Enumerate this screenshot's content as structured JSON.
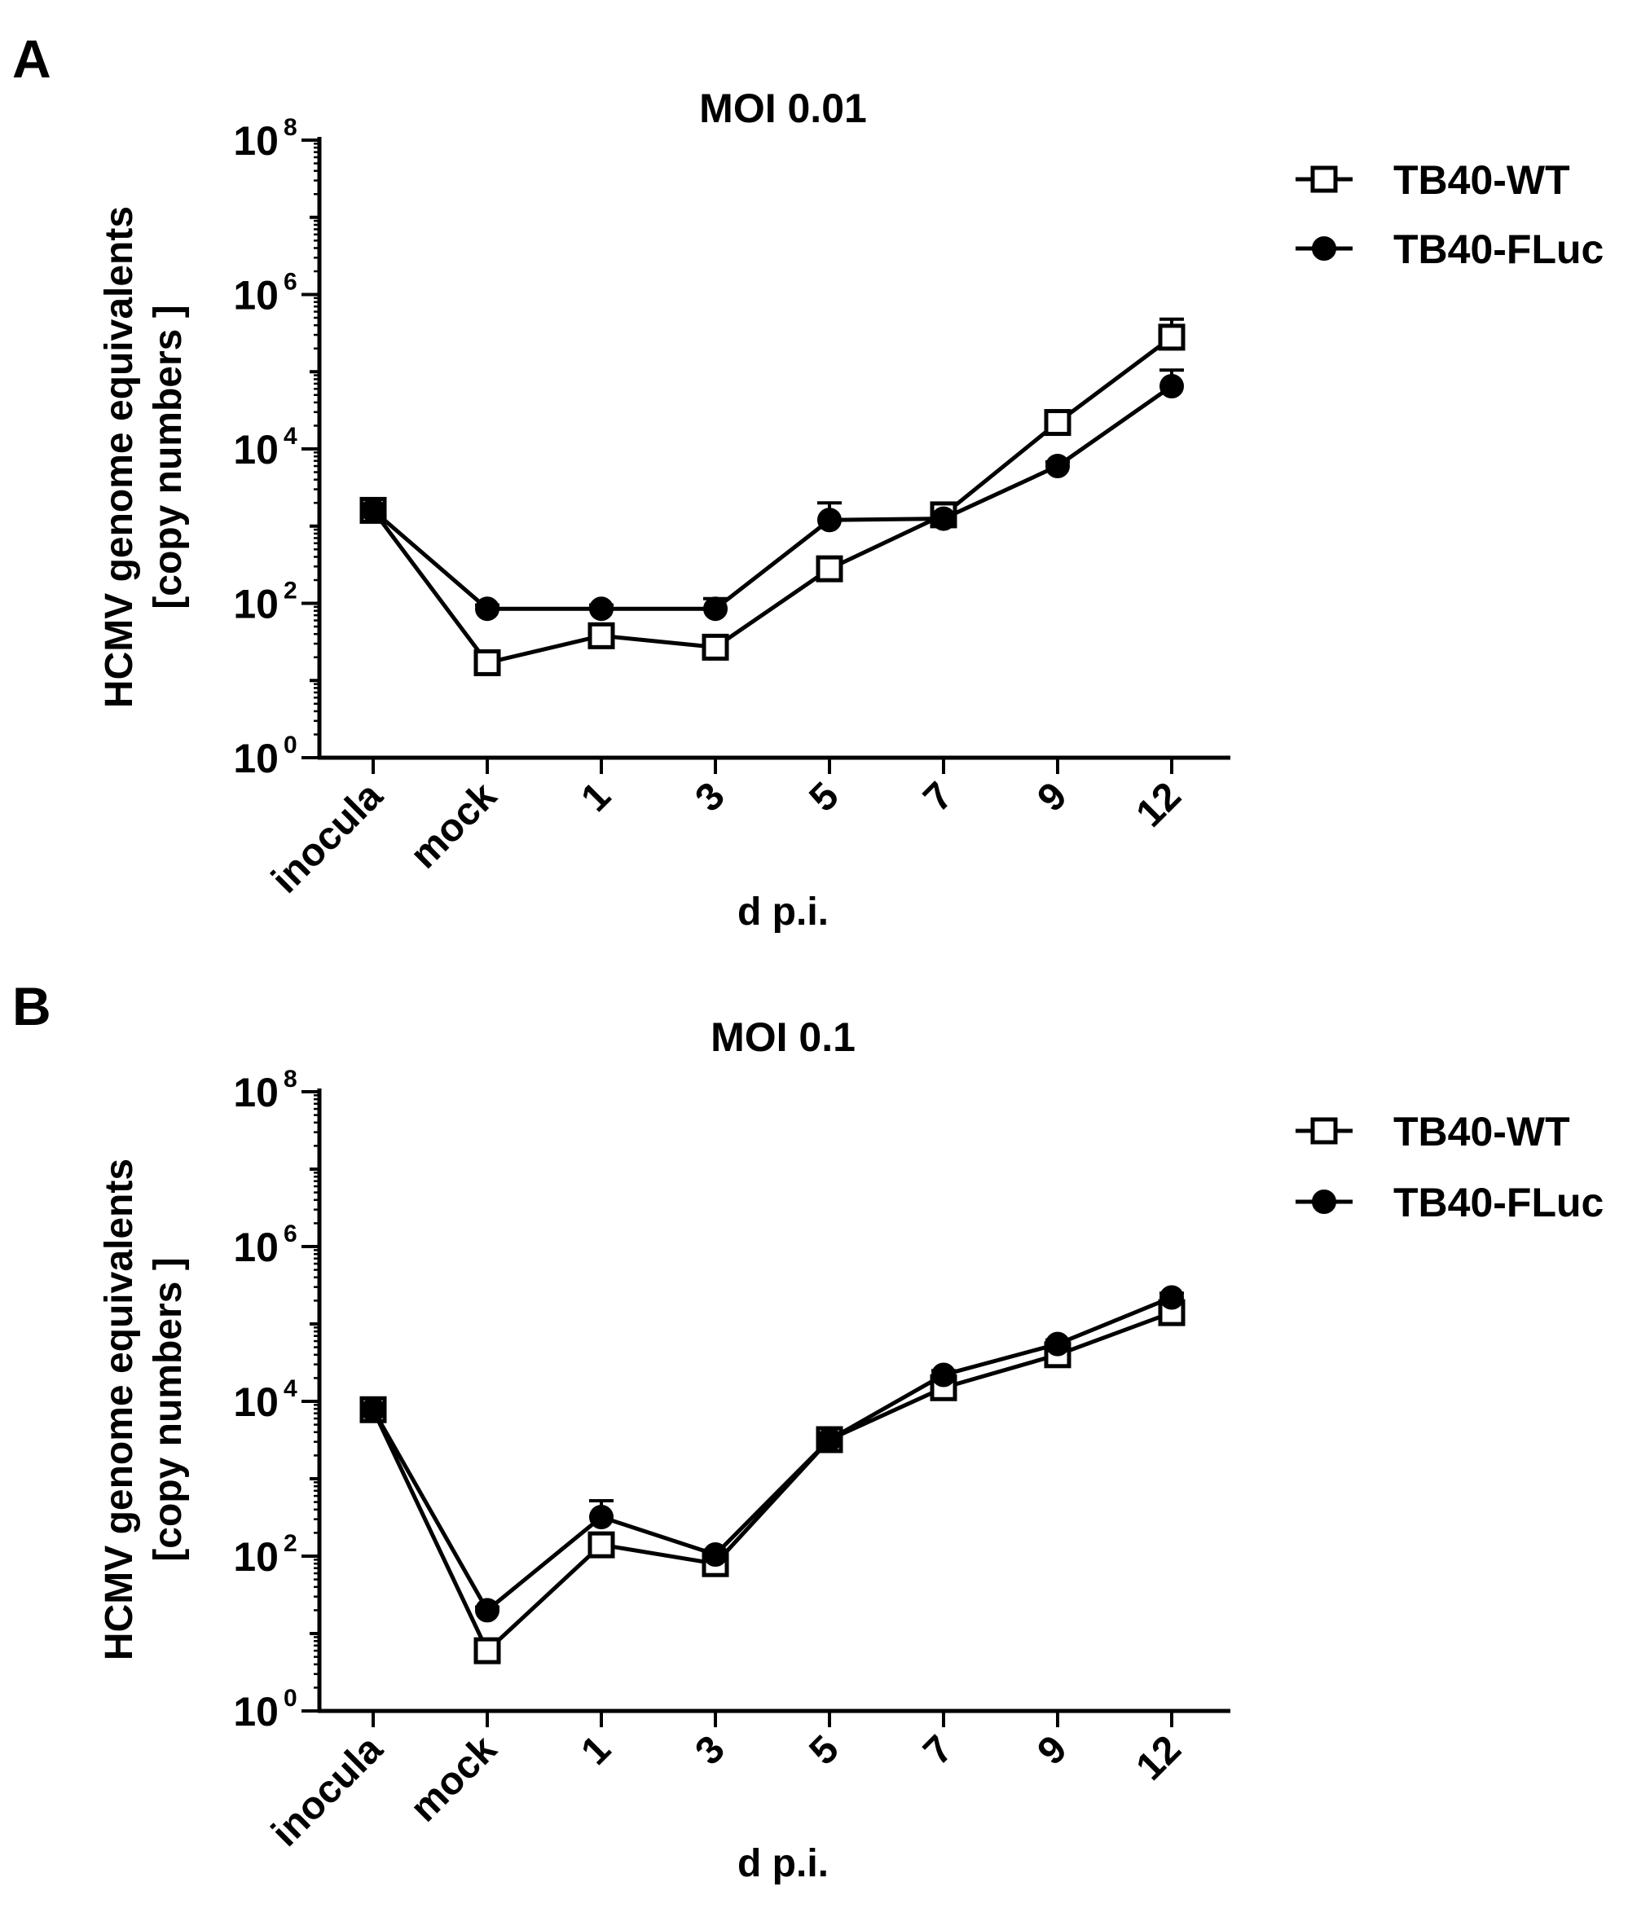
{
  "chart_data": [
    {
      "type": "line",
      "panel": "A",
      "title": "MOI 0.01",
      "xlabel": "d p.i.",
      "ylabel": [
        "HCMV genome equivalents",
        "[copy numbers ]"
      ],
      "yscale": "log10",
      "ylim": [
        1,
        100000000
      ],
      "yticks": [
        {
          "base": "10",
          "exp": "0"
        },
        {
          "base": "10",
          "exp": "2"
        },
        {
          "base": "10",
          "exp": "4"
        },
        {
          "base": "10",
          "exp": "6"
        },
        {
          "base": "10",
          "exp": "8"
        }
      ],
      "categories": [
        "inocula",
        "mock",
        "1",
        "3",
        "5",
        "7",
        "9",
        "12"
      ],
      "legend_position": "top-right",
      "series": [
        {
          "name": "TB40-WT",
          "marker": "open-square",
          "values": [
            1600,
            17,
            38,
            27,
            280,
            1400,
            22000,
            280000
          ],
          "err_upper": [
            1900,
            19,
            44,
            31,
            320,
            1600,
            27000,
            480000
          ]
        },
        {
          "name": "TB40-FLuc",
          "marker": "filled-circle",
          "values": [
            1600,
            85,
            85,
            85,
            1200,
            1250,
            6000,
            65000
          ],
          "err_upper": [
            1800,
            95,
            95,
            115,
            2000,
            1400,
            6800,
            105000
          ]
        }
      ]
    },
    {
      "type": "line",
      "panel": "B",
      "title": "MOI 0.1",
      "xlabel": "d p.i.",
      "ylabel": [
        "HCMV genome equivalents",
        "[copy numbers ]"
      ],
      "yscale": "log10",
      "ylim": [
        1,
        100000000
      ],
      "yticks": [
        {
          "base": "10",
          "exp": "0"
        },
        {
          "base": "10",
          "exp": "2"
        },
        {
          "base": "10",
          "exp": "4"
        },
        {
          "base": "10",
          "exp": "6"
        },
        {
          "base": "10",
          "exp": "8"
        }
      ],
      "categories": [
        "inocula",
        "mock",
        "1",
        "3",
        "5",
        "7",
        "9",
        "12"
      ],
      "legend_position": "top-right",
      "series": [
        {
          "name": "TB40-WT",
          "marker": "open-square",
          "values": [
            7800,
            6,
            140,
            80,
            3200,
            15000,
            40000,
            140000
          ],
          "err_upper": [
            9000,
            7,
            160,
            90,
            3600,
            17000,
            45000,
            165000
          ]
        },
        {
          "name": "TB40-FLuc",
          "marker": "filled-circle",
          "values": [
            7800,
            20,
            320,
            105,
            3200,
            22000,
            55000,
            220000
          ],
          "err_upper": [
            8800,
            22,
            520,
            120,
            3600,
            25000,
            62000,
            250000
          ]
        }
      ]
    }
  ]
}
